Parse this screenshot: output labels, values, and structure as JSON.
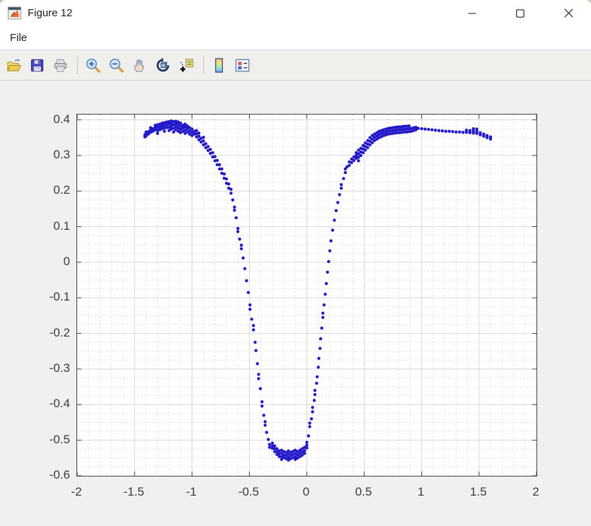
{
  "window": {
    "title": "Figure 12",
    "controls": [
      {
        "name": "minimize"
      },
      {
        "name": "maximize"
      },
      {
        "name": "close"
      }
    ]
  },
  "menubar": {
    "items": [
      "File"
    ]
  },
  "toolbar": {
    "buttons": [
      {
        "icon": "open-folder-icon"
      },
      {
        "icon": "save-icon"
      },
      {
        "icon": "print-icon"
      },
      {
        "icon": "zoom-in-icon"
      },
      {
        "icon": "zoom-out-icon"
      },
      {
        "icon": "pan-hand-icon"
      },
      {
        "icon": "rotate-3d-icon"
      },
      {
        "icon": "data-cursor-icon"
      },
      {
        "icon": "colorbar-icon"
      },
      {
        "icon": "legend-icon"
      }
    ]
  },
  "chart_data": {
    "type": "scatter",
    "title": "",
    "xlabel": "",
    "ylabel": "",
    "xlim": [
      -2,
      2
    ],
    "ylim": [
      -0.6,
      0.415
    ],
    "xtick_values": [
      -2,
      -1.5,
      -1,
      -0.5,
      0,
      0.5,
      1,
      1.5,
      2
    ],
    "xtick_labels": [
      "-2",
      "-1.5",
      "-1",
      "-0.5",
      "0",
      "0.5",
      "1",
      "1.5",
      "2"
    ],
    "ytick_values": [
      0.4,
      0.3,
      0.2,
      0.1,
      0,
      -0.1,
      -0.2,
      -0.3,
      -0.4,
      -0.5,
      -0.6
    ],
    "ytick_labels": [
      "0.4",
      "0.3",
      "0.2",
      "0.1",
      "0",
      "-0.1",
      "-0.2",
      "-0.3",
      "-0.4",
      "-0.5",
      "-0.6"
    ],
    "minor_x_step": 0.1,
    "minor_y_step": 0.025,
    "grid": "major+minor",
    "legend": "none",
    "colors": {
      "marker": "#2318c8",
      "axes": "#3f3f3f",
      "grid_major": "#d6d6d6",
      "grid_minor": "#dedede",
      "plot_bg": "#ffffff",
      "figure_bg": "#f0f0f0"
    },
    "marker_size_px": 4,
    "points": [
      [
        -1.41,
        0.352
      ],
      [
        -1.41,
        0.358
      ],
      [
        -1.4,
        0.355
      ],
      [
        -1.4,
        0.361
      ],
      [
        -1.4,
        0.366
      ],
      [
        -1.38,
        0.36
      ],
      [
        -1.38,
        0.367
      ],
      [
        -1.36,
        0.365
      ],
      [
        -1.36,
        0.372
      ],
      [
        -1.36,
        0.378
      ],
      [
        -1.34,
        0.368
      ],
      [
        -1.34,
        0.375
      ],
      [
        -1.32,
        0.372
      ],
      [
        -1.32,
        0.379
      ],
      [
        -1.32,
        0.385
      ],
      [
        -1.3,
        0.362
      ],
      [
        -1.3,
        0.37
      ],
      [
        -1.3,
        0.378
      ],
      [
        -1.3,
        0.386
      ],
      [
        -1.28,
        0.372
      ],
      [
        -1.28,
        0.38
      ],
      [
        -1.28,
        0.388
      ],
      [
        -1.26,
        0.375
      ],
      [
        -1.26,
        0.383
      ],
      [
        -1.26,
        0.391
      ],
      [
        -1.24,
        0.368
      ],
      [
        -1.24,
        0.377
      ],
      [
        -1.24,
        0.385
      ],
      [
        -1.24,
        0.392
      ],
      [
        -1.22,
        0.378
      ],
      [
        -1.22,
        0.386
      ],
      [
        -1.22,
        0.394
      ],
      [
        -1.2,
        0.37
      ],
      [
        -1.2,
        0.379
      ],
      [
        -1.2,
        0.388
      ],
      [
        -1.2,
        0.395
      ],
      [
        -1.18,
        0.374
      ],
      [
        -1.18,
        0.382
      ],
      [
        -1.18,
        0.39
      ],
      [
        -1.18,
        0.397
      ],
      [
        -1.16,
        0.366
      ],
      [
        -1.16,
        0.376
      ],
      [
        -1.16,
        0.386
      ],
      [
        -1.16,
        0.395
      ],
      [
        -1.14,
        0.372
      ],
      [
        -1.14,
        0.381
      ],
      [
        -1.14,
        0.389
      ],
      [
        -1.14,
        0.396
      ],
      [
        -1.12,
        0.368
      ],
      [
        -1.12,
        0.377
      ],
      [
        -1.12,
        0.386
      ],
      [
        -1.12,
        0.394
      ],
      [
        -1.1,
        0.364
      ],
      [
        -1.1,
        0.373
      ],
      [
        -1.1,
        0.382
      ],
      [
        -1.1,
        0.391
      ],
      [
        -1.08,
        0.368
      ],
      [
        -1.08,
        0.377
      ],
      [
        -1.08,
        0.385
      ],
      [
        -1.06,
        0.362
      ],
      [
        -1.06,
        0.371
      ],
      [
        -1.06,
        0.38
      ],
      [
        -1.06,
        0.388
      ],
      [
        -1.04,
        0.366
      ],
      [
        -1.04,
        0.375
      ],
      [
        -1.04,
        0.383
      ],
      [
        -1.02,
        0.36
      ],
      [
        -1.02,
        0.369
      ],
      [
        -1.02,
        0.378
      ],
      [
        -1.0,
        0.356
      ],
      [
        -1.0,
        0.365
      ],
      [
        -1.0,
        0.374
      ],
      [
        -0.98,
        0.36
      ],
      [
        -0.98,
        0.368
      ],
      [
        -0.96,
        0.352
      ],
      [
        -0.96,
        0.361
      ],
      [
        -0.96,
        0.37
      ],
      [
        -0.94,
        0.344
      ],
      [
        -0.94,
        0.354
      ],
      [
        -0.94,
        0.363
      ],
      [
        -0.92,
        0.338
      ],
      [
        -0.92,
        0.348
      ],
      [
        -0.9,
        0.33
      ],
      [
        -0.9,
        0.341
      ],
      [
        -0.9,
        0.351
      ],
      [
        -0.88,
        0.322
      ],
      [
        -0.88,
        0.333
      ],
      [
        -0.86,
        0.314
      ],
      [
        -0.86,
        0.325
      ],
      [
        -0.84,
        0.306
      ],
      [
        -0.84,
        0.317
      ],
      [
        -0.82,
        0.296
      ],
      [
        -0.82,
        0.308
      ],
      [
        -0.8,
        0.285
      ],
      [
        -0.8,
        0.297
      ],
      [
        -0.78,
        0.274
      ],
      [
        -0.78,
        0.286
      ],
      [
        -0.76,
        0.262
      ],
      [
        -0.76,
        0.274
      ],
      [
        -0.74,
        0.25
      ],
      [
        -0.74,
        0.262
      ],
      [
        -0.72,
        0.236
      ],
      [
        -0.72,
        0.248
      ],
      [
        -0.7,
        0.222
      ],
      [
        -0.7,
        0.234
      ],
      [
        -0.68,
        0.208
      ],
      [
        -0.68,
        0.22
      ],
      [
        -0.66,
        0.194
      ],
      [
        -0.66,
        0.205
      ],
      [
        -0.645,
        0.175
      ],
      [
        -0.63,
        0.155
      ],
      [
        -0.63,
        0.146
      ],
      [
        -0.615,
        0.125
      ],
      [
        -0.6,
        0.095
      ],
      [
        -0.6,
        0.086
      ],
      [
        -0.585,
        0.065
      ],
      [
        -0.57,
        0.048
      ],
      [
        -0.57,
        0.038
      ],
      [
        -0.555,
        0.012
      ],
      [
        -0.54,
        -0.018
      ],
      [
        -0.525,
        -0.052
      ],
      [
        -0.51,
        -0.085
      ],
      [
        -0.495,
        -0.12
      ],
      [
        -0.495,
        -0.132
      ],
      [
        -0.48,
        -0.16
      ],
      [
        -0.465,
        -0.178
      ],
      [
        -0.465,
        -0.19
      ],
      [
        -0.45,
        -0.225
      ],
      [
        -0.443,
        -0.248
      ],
      [
        -0.43,
        -0.285
      ],
      [
        -0.42,
        -0.315
      ],
      [
        -0.42,
        -0.327
      ],
      [
        -0.405,
        -0.355
      ],
      [
        -0.39,
        -0.392
      ],
      [
        -0.39,
        -0.404
      ],
      [
        -0.375,
        -0.43
      ],
      [
        -0.363,
        -0.448
      ],
      [
        -0.363,
        -0.458
      ],
      [
        -0.35,
        -0.478
      ],
      [
        -0.335,
        -0.498
      ],
      [
        -0.325,
        -0.512
      ],
      [
        -0.325,
        -0.52
      ],
      [
        -0.3,
        -0.508
      ],
      [
        -0.3,
        -0.516
      ],
      [
        -0.3,
        -0.523
      ],
      [
        -0.28,
        -0.516
      ],
      [
        -0.28,
        -0.524
      ],
      [
        -0.28,
        -0.532
      ],
      [
        -0.26,
        -0.524
      ],
      [
        -0.26,
        -0.532
      ],
      [
        -0.26,
        -0.54
      ],
      [
        -0.24,
        -0.53
      ],
      [
        -0.24,
        -0.538
      ],
      [
        -0.24,
        -0.546
      ],
      [
        -0.22,
        -0.528
      ],
      [
        -0.22,
        -0.537
      ],
      [
        -0.22,
        -0.546
      ],
      [
        -0.22,
        -0.554
      ],
      [
        -0.2,
        -0.532
      ],
      [
        -0.2,
        -0.541
      ],
      [
        -0.2,
        -0.549
      ],
      [
        -0.18,
        -0.534
      ],
      [
        -0.18,
        -0.543
      ],
      [
        -0.18,
        -0.552
      ],
      [
        -0.16,
        -0.53
      ],
      [
        -0.16,
        -0.539
      ],
      [
        -0.16,
        -0.548
      ],
      [
        -0.16,
        -0.556
      ],
      [
        -0.14,
        -0.534
      ],
      [
        -0.14,
        -0.543
      ],
      [
        -0.14,
        -0.552
      ],
      [
        -0.12,
        -0.531
      ],
      [
        -0.12,
        -0.54
      ],
      [
        -0.12,
        -0.549
      ],
      [
        -0.1,
        -0.528
      ],
      [
        -0.1,
        -0.537
      ],
      [
        -0.1,
        -0.546
      ],
      [
        -0.1,
        -0.554
      ],
      [
        -0.08,
        -0.532
      ],
      [
        -0.08,
        -0.541
      ],
      [
        -0.08,
        -0.55
      ],
      [
        -0.06,
        -0.528
      ],
      [
        -0.06,
        -0.537
      ],
      [
        -0.06,
        -0.546
      ],
      [
        -0.04,
        -0.524
      ],
      [
        -0.04,
        -0.533
      ],
      [
        -0.04,
        -0.542
      ],
      [
        -0.02,
        -0.52
      ],
      [
        -0.02,
        -0.529
      ],
      [
        -0.02,
        -0.537
      ],
      [
        0.0,
        -0.506
      ],
      [
        0.0,
        -0.514
      ],
      [
        0.0,
        -0.522
      ],
      [
        0.015,
        -0.488
      ],
      [
        0.025,
        -0.462
      ],
      [
        0.025,
        -0.452
      ],
      [
        0.04,
        -0.44
      ],
      [
        0.05,
        -0.42
      ],
      [
        0.05,
        -0.408
      ],
      [
        0.065,
        -0.388
      ],
      [
        0.07,
        -0.372
      ],
      [
        0.07,
        -0.36
      ],
      [
        0.085,
        -0.34
      ],
      [
        0.09,
        -0.322
      ],
      [
        0.1,
        -0.295
      ],
      [
        0.105,
        -0.27
      ],
      [
        0.115,
        -0.242
      ],
      [
        0.12,
        -0.215
      ],
      [
        0.13,
        -0.185
      ],
      [
        0.14,
        -0.155
      ],
      [
        0.14,
        -0.143
      ],
      [
        0.15,
        -0.12
      ],
      [
        0.16,
        -0.09
      ],
      [
        0.17,
        -0.06
      ],
      [
        0.18,
        -0.028
      ],
      [
        0.19,
        0.002
      ],
      [
        0.2,
        0.032
      ],
      [
        0.21,
        0.06
      ],
      [
        0.225,
        0.09
      ],
      [
        0.24,
        0.118
      ],
      [
        0.255,
        0.145
      ],
      [
        0.27,
        0.168
      ],
      [
        0.285,
        0.19
      ],
      [
        0.3,
        0.208
      ],
      [
        0.3,
        0.218
      ],
      [
        0.32,
        0.235
      ],
      [
        0.335,
        0.252
      ],
      [
        0.335,
        0.262
      ],
      [
        0.35,
        0.268
      ],
      [
        0.37,
        0.272
      ],
      [
        0.37,
        0.282
      ],
      [
        0.39,
        0.28
      ],
      [
        0.39,
        0.29
      ],
      [
        0.41,
        0.286
      ],
      [
        0.41,
        0.296
      ],
      [
        0.43,
        0.292
      ],
      [
        0.43,
        0.3
      ],
      [
        0.43,
        0.308
      ],
      [
        0.45,
        0.285
      ],
      [
        0.45,
        0.295
      ],
      [
        0.45,
        0.305
      ],
      [
        0.45,
        0.315
      ],
      [
        0.47,
        0.3
      ],
      [
        0.47,
        0.31
      ],
      [
        0.47,
        0.32
      ],
      [
        0.49,
        0.308
      ],
      [
        0.49,
        0.318
      ],
      [
        0.49,
        0.328
      ],
      [
        0.51,
        0.315
      ],
      [
        0.51,
        0.325
      ],
      [
        0.51,
        0.335
      ],
      [
        0.53,
        0.322
      ],
      [
        0.53,
        0.332
      ],
      [
        0.53,
        0.342
      ],
      [
        0.55,
        0.33
      ],
      [
        0.55,
        0.34
      ],
      [
        0.55,
        0.35
      ],
      [
        0.57,
        0.336
      ],
      [
        0.57,
        0.346
      ],
      [
        0.57,
        0.356
      ],
      [
        0.59,
        0.342
      ],
      [
        0.59,
        0.351
      ],
      [
        0.59,
        0.36
      ],
      [
        0.61,
        0.346
      ],
      [
        0.61,
        0.355
      ],
      [
        0.61,
        0.364
      ],
      [
        0.63,
        0.35
      ],
      [
        0.63,
        0.359
      ],
      [
        0.63,
        0.368
      ],
      [
        0.65,
        0.353
      ],
      [
        0.65,
        0.362
      ],
      [
        0.65,
        0.37
      ],
      [
        0.67,
        0.356
      ],
      [
        0.67,
        0.364
      ],
      [
        0.67,
        0.372
      ],
      [
        0.69,
        0.358
      ],
      [
        0.69,
        0.366
      ],
      [
        0.69,
        0.374
      ],
      [
        0.71,
        0.36
      ],
      [
        0.71,
        0.368
      ],
      [
        0.71,
        0.376
      ],
      [
        0.73,
        0.361
      ],
      [
        0.73,
        0.369
      ],
      [
        0.73,
        0.377
      ],
      [
        0.75,
        0.362
      ],
      [
        0.75,
        0.37
      ],
      [
        0.75,
        0.378
      ],
      [
        0.77,
        0.363
      ],
      [
        0.77,
        0.371
      ],
      [
        0.77,
        0.379
      ],
      [
        0.79,
        0.364
      ],
      [
        0.79,
        0.372
      ],
      [
        0.79,
        0.38
      ],
      [
        0.81,
        0.364
      ],
      [
        0.81,
        0.372
      ],
      [
        0.81,
        0.38
      ],
      [
        0.83,
        0.365
      ],
      [
        0.83,
        0.373
      ],
      [
        0.83,
        0.381
      ],
      [
        0.85,
        0.366
      ],
      [
        0.85,
        0.374
      ],
      [
        0.85,
        0.382
      ],
      [
        0.87,
        0.366
      ],
      [
        0.87,
        0.374
      ],
      [
        0.87,
        0.382
      ],
      [
        0.89,
        0.367
      ],
      [
        0.89,
        0.375
      ],
      [
        0.89,
        0.383
      ],
      [
        0.91,
        0.368
      ],
      [
        0.91,
        0.376
      ],
      [
        0.93,
        0.37
      ],
      [
        0.93,
        0.378
      ],
      [
        0.95,
        0.372
      ],
      [
        0.95,
        0.379
      ],
      [
        0.97,
        0.376
      ],
      [
        1.0,
        0.375
      ],
      [
        1.03,
        0.374
      ],
      [
        1.06,
        0.373
      ],
      [
        1.09,
        0.372
      ],
      [
        1.12,
        0.371
      ],
      [
        1.15,
        0.37
      ],
      [
        1.18,
        0.369
      ],
      [
        1.21,
        0.368
      ],
      [
        1.24,
        0.368
      ],
      [
        1.27,
        0.367
      ],
      [
        1.3,
        0.366
      ],
      [
        1.33,
        0.366
      ],
      [
        1.36,
        0.365
      ],
      [
        1.39,
        0.365
      ],
      [
        1.39,
        0.371
      ],
      [
        1.42,
        0.364
      ],
      [
        1.42,
        0.37
      ],
      [
        1.45,
        0.363
      ],
      [
        1.45,
        0.369
      ],
      [
        1.45,
        0.375
      ],
      [
        1.48,
        0.362
      ],
      [
        1.48,
        0.368
      ],
      [
        1.48,
        0.374
      ],
      [
        1.51,
        0.358
      ],
      [
        1.51,
        0.364
      ],
      [
        1.54,
        0.354
      ],
      [
        1.54,
        0.36
      ],
      [
        1.57,
        0.35
      ],
      [
        1.57,
        0.356
      ],
      [
        1.6,
        0.346
      ],
      [
        1.6,
        0.352
      ]
    ]
  }
}
